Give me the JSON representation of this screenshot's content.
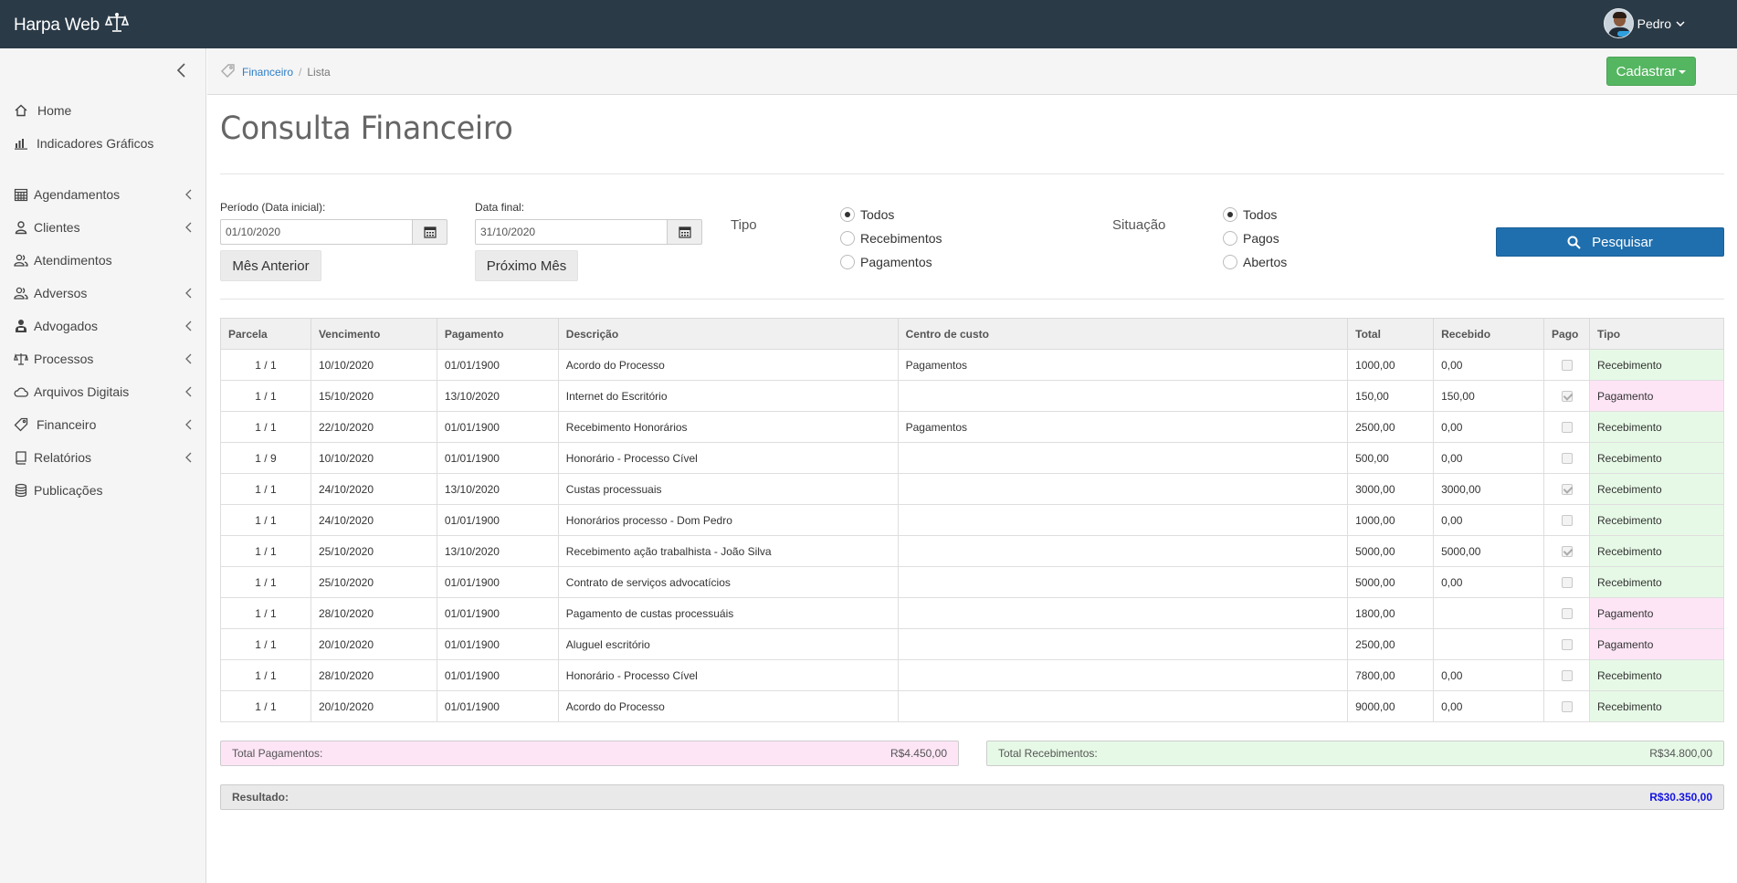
{
  "app": {
    "brand": "Harpa Web",
    "user_name": "Pedro"
  },
  "sidebar": {
    "items": [
      {
        "label": "Home",
        "icon": "home-icon",
        "has_submenu": false
      },
      {
        "label": "Indicadores Gráficos",
        "icon": "bar-chart-icon",
        "has_submenu": false
      },
      {
        "label": "Agendamentos",
        "icon": "calendar-icon",
        "has_submenu": true
      },
      {
        "label": "Clientes",
        "icon": "user-icon",
        "has_submenu": true
      },
      {
        "label": "Atendimentos",
        "icon": "users-icon",
        "has_submenu": false
      },
      {
        "label": "Adversos",
        "icon": "users-icon",
        "has_submenu": true
      },
      {
        "label": "Advogados",
        "icon": "lawyer-icon",
        "has_submenu": true
      },
      {
        "label": "Processos",
        "icon": "scale-icon",
        "has_submenu": true
      },
      {
        "label": "Arquivos Digitais",
        "icon": "cloud-icon",
        "has_submenu": true
      },
      {
        "label": "Financeiro",
        "icon": "tag-icon",
        "has_submenu": true
      },
      {
        "label": "Relatórios",
        "icon": "book-icon",
        "has_submenu": true
      },
      {
        "label": "Publicações",
        "icon": "database-icon",
        "has_submenu": false
      }
    ]
  },
  "breadcrumb": {
    "parent": "Financeiro",
    "current": "Lista"
  },
  "header": {
    "cadastrar_label": "Cadastrar"
  },
  "page": {
    "title": "Consulta Financeiro"
  },
  "filters": {
    "data_inicial_label": "Período (Data inicial):",
    "data_inicial_value": "01/10/2020",
    "data_final_label": "Data final:",
    "data_final_value": "31/10/2020",
    "mes_anterior_label": "Mês Anterior",
    "proximo_mes_label": "Próximo Mês",
    "tipo_label": "Tipo",
    "tipo_options": [
      "Todos",
      "Recebimentos",
      "Pagamentos"
    ],
    "tipo_selected": "Todos",
    "situacao_label": "Situação",
    "situacao_options": [
      "Todos",
      "Pagos",
      "Abertos"
    ],
    "situacao_selected": "Todos",
    "pesquisar_label": "Pesquisar"
  },
  "table": {
    "headers": [
      "Parcela",
      "Vencimento",
      "Pagamento",
      "Descrição",
      "Centro de custo",
      "Total",
      "Recebido",
      "Pago",
      "Tipo"
    ],
    "rows": [
      {
        "parcela": "1 / 1",
        "vencimento": "10/10/2020",
        "pagamento": "01/01/1900",
        "descricao": "Acordo do Processo",
        "centro": "Pagamentos",
        "total": "1000,00",
        "recebido": "0,00",
        "pago": false,
        "tipo": "Recebimento"
      },
      {
        "parcela": "1 / 1",
        "vencimento": "15/10/2020",
        "pagamento": "13/10/2020",
        "descricao": "Internet do Escritório",
        "centro": "",
        "total": "150,00",
        "recebido": "150,00",
        "pago": true,
        "tipo": "Pagamento"
      },
      {
        "parcela": "1 / 1",
        "vencimento": "22/10/2020",
        "pagamento": "01/01/1900",
        "descricao": "Recebimento Honorários",
        "centro": "Pagamentos",
        "total": "2500,00",
        "recebido": "0,00",
        "pago": false,
        "tipo": "Recebimento"
      },
      {
        "parcela": "1 / 9",
        "vencimento": "10/10/2020",
        "pagamento": "01/01/1900",
        "descricao": "Honorário - Processo Cível",
        "centro": "",
        "total": "500,00",
        "recebido": "0,00",
        "pago": false,
        "tipo": "Recebimento"
      },
      {
        "parcela": "1 / 1",
        "vencimento": "24/10/2020",
        "pagamento": "13/10/2020",
        "descricao": "Custas processuais",
        "centro": "",
        "total": "3000,00",
        "recebido": "3000,00",
        "pago": true,
        "tipo": "Recebimento"
      },
      {
        "parcela": "1 / 1",
        "vencimento": "24/10/2020",
        "pagamento": "01/01/1900",
        "descricao": "Honorários processo - Dom Pedro",
        "centro": "",
        "total": "1000,00",
        "recebido": "0,00",
        "pago": false,
        "tipo": "Recebimento"
      },
      {
        "parcela": "1 / 1",
        "vencimento": "25/10/2020",
        "pagamento": "13/10/2020",
        "descricao": "Recebimento ação trabalhista - João Silva",
        "centro": "",
        "total": "5000,00",
        "recebido": "5000,00",
        "pago": true,
        "tipo": "Recebimento"
      },
      {
        "parcela": "1 / 1",
        "vencimento": "25/10/2020",
        "pagamento": "01/01/1900",
        "descricao": "Contrato de serviços advocatícios",
        "centro": "",
        "total": "5000,00",
        "recebido": "0,00",
        "pago": false,
        "tipo": "Recebimento"
      },
      {
        "parcela": "1 / 1",
        "vencimento": "28/10/2020",
        "pagamento": "01/01/1900",
        "descricao": "Pagamento de custas processuáis",
        "centro": "",
        "total": "1800,00",
        "recebido": "",
        "pago": false,
        "tipo": "Pagamento"
      },
      {
        "parcela": "1 / 1",
        "vencimento": "20/10/2020",
        "pagamento": "01/01/1900",
        "descricao": "Aluguel escritório",
        "centro": "",
        "total": "2500,00",
        "recebido": "",
        "pago": false,
        "tipo": "Pagamento"
      },
      {
        "parcela": "1 / 1",
        "vencimento": "28/10/2020",
        "pagamento": "01/01/1900",
        "descricao": "Honorário - Processo Cível",
        "centro": "",
        "total": "7800,00",
        "recebido": "0,00",
        "pago": false,
        "tipo": "Recebimento"
      },
      {
        "parcela": "1 / 1",
        "vencimento": "20/10/2020",
        "pagamento": "01/01/1900",
        "descricao": "Acordo do Processo",
        "centro": "",
        "total": "9000,00",
        "recebido": "0,00",
        "pago": false,
        "tipo": "Recebimento"
      }
    ]
  },
  "totals": {
    "pagamentos_label": "Total Pagamentos:",
    "pagamentos_value": "R$4.450,00",
    "recebimentos_label": "Total Recebimentos:",
    "recebimentos_value": "R$34.800,00",
    "resultado_label": "Resultado:",
    "resultado_value": "R$30.350,00"
  },
  "colors": {
    "topbar": "#2a3a47",
    "green_button": "#55b661",
    "blue_button": "#1f6fae",
    "recebimento_bg": "#e6f9e6",
    "pagamento_bg": "#fde5f6",
    "resultado_value": "#1414e0",
    "link": "#2d7ec6"
  }
}
